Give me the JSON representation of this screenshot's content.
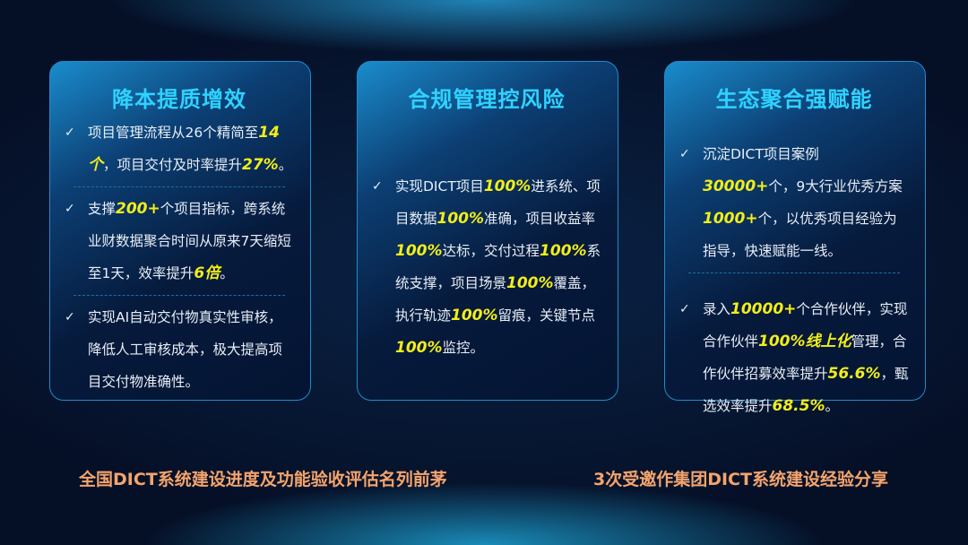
{
  "cards": [
    {
      "title": "降本提质增效",
      "bullets": [
        [
          {
            "t": "项目管理流程从26个精简至"
          },
          {
            "t": "14个",
            "hl": true
          },
          {
            "t": "，项目交付及时率提升"
          },
          {
            "t": "27%",
            "hl": true
          },
          {
            "t": "。"
          }
        ],
        [
          {
            "t": "支撑"
          },
          {
            "t": "200+",
            "hl": true
          },
          {
            "t": "个项目指标，跨系统业财数据聚合时间从原来7天缩短至1天，效率提升"
          },
          {
            "t": "6倍",
            "hl": true
          },
          {
            "t": "。"
          }
        ],
        [
          {
            "t": "实现AI自动交付物真实性审核，降低人工审核成本，极大提高项目交付物准确性。"
          }
        ]
      ]
    },
    {
      "title": "合规管理控风险",
      "bullets": [
        [
          {
            "t": "实现DICT项目"
          },
          {
            "t": "100%",
            "hl": true
          },
          {
            "t": "进系统、项目数据"
          },
          {
            "t": "100%",
            "hl": true
          },
          {
            "t": "准确，项目收益率"
          },
          {
            "t": "100%",
            "hl": true
          },
          {
            "t": "达标，交付过程"
          },
          {
            "t": "100%",
            "hl": true
          },
          {
            "t": "系统支撑，项目场景"
          },
          {
            "t": "100%",
            "hl": true
          },
          {
            "t": "覆盖，执行轨迹"
          },
          {
            "t": "100%",
            "hl": true
          },
          {
            "t": "留痕，关键节点"
          },
          {
            "t": "100%",
            "hl": true
          },
          {
            "t": "监控。"
          }
        ]
      ]
    },
    {
      "title": "生态聚合强赋能",
      "bullets": [
        [
          {
            "t": "沉淀DICT项目案例"
          },
          {
            "t": "30000+",
            "hl": true
          },
          {
            "t": "个，9大行业优秀方案"
          },
          {
            "t": "1000+",
            "hl": true
          },
          {
            "t": "个，以优秀项目经验为指导，快速赋能一线。"
          }
        ],
        [
          {
            "t": "录入"
          },
          {
            "t": "10000+",
            "hl": true
          },
          {
            "t": "个合作伙伴，实现合作伙伴"
          },
          {
            "t": "100%线上化",
            "hl": true
          },
          {
            "t": "管理，合作伙伴招募效率提升"
          },
          {
            "t": "56.6%",
            "hl": true
          },
          {
            "t": "，甄选效率提升"
          },
          {
            "t": "68.5%",
            "hl": true
          },
          {
            "t": "。"
          }
        ]
      ]
    }
  ],
  "check_icon": "✓",
  "footer": {
    "left": "全国DICT系统建设进度及功能验收评估名列前茅",
    "right": "3次受邀作集团DICT系统建设经验分享"
  },
  "colors": {
    "title": "#2fd2ff",
    "highlight": "#f2ee19",
    "footer": "#f4a46c"
  }
}
